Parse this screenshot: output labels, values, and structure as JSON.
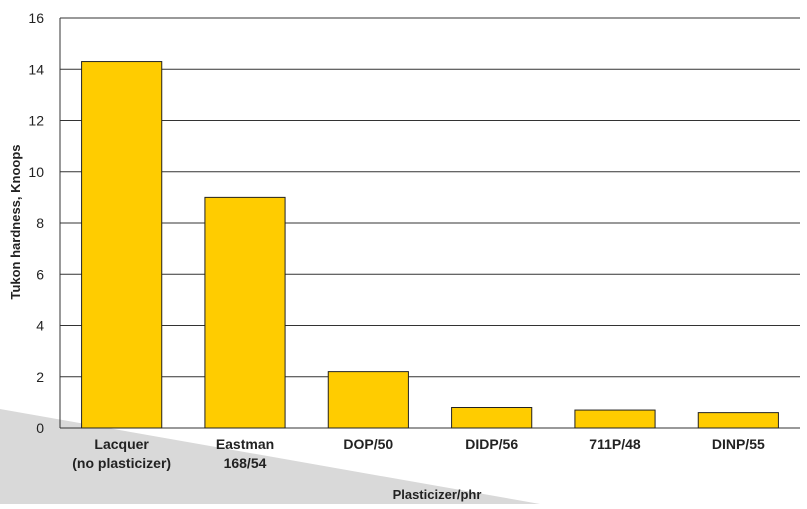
{
  "chart_data": {
    "type": "bar",
    "title": "",
    "xlabel": "Plasticizer/phr",
    "ylabel": "Tukon hardness, Knoops",
    "ylim": [
      0,
      16
    ],
    "yticks": [
      0,
      2,
      4,
      6,
      8,
      10,
      12,
      14,
      16
    ],
    "grid": true,
    "categories": [
      [
        "Lacquer",
        "(no plasticizer)"
      ],
      [
        "Eastman",
        "168/54"
      ],
      [
        "DOP/50"
      ],
      [
        "DIDP/56"
      ],
      [
        "711P/48"
      ],
      [
        "DINP/55"
      ]
    ],
    "values": [
      14.3,
      9.0,
      2.2,
      0.8,
      0.7,
      0.6
    ],
    "colors": {
      "bar": "#FFCC00",
      "bar_stroke": "#222222",
      "grid": "#333333",
      "decor": "#d9d9d9"
    }
  }
}
